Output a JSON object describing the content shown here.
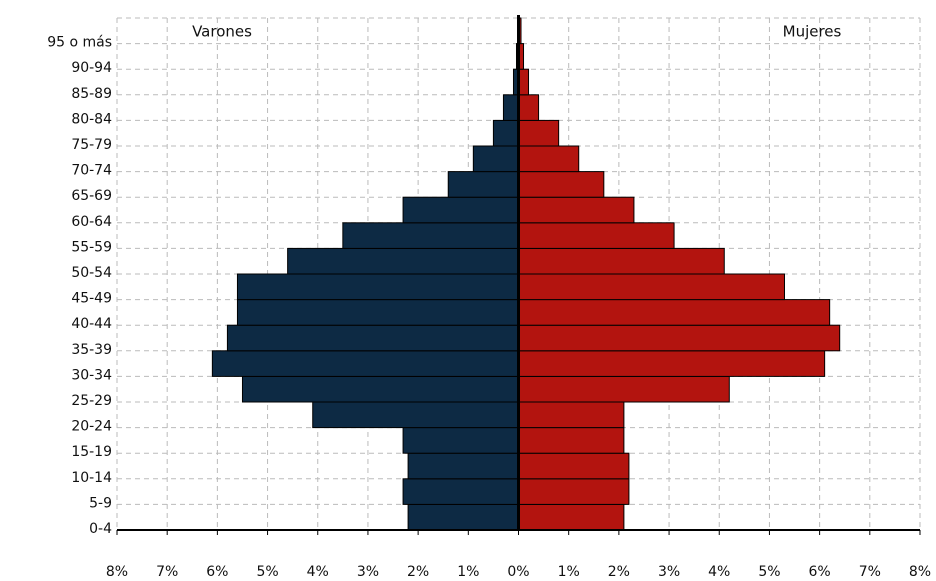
{
  "chart_data": {
    "type": "pyramid",
    "categories": [
      "0-4",
      "5-9",
      "10-14",
      "15-19",
      "20-24",
      "25-29",
      "30-34",
      "35-39",
      "40-44",
      "45-49",
      "50-54",
      "55-59",
      "60-64",
      "65-69",
      "70-74",
      "75-79",
      "80-84",
      "85-89",
      "90-94",
      "95 o más"
    ],
    "series": [
      {
        "name": "Varones",
        "color": "#0d2a44",
        "side": "left",
        "values": [
          2.2,
          2.3,
          2.2,
          2.3,
          4.1,
          5.5,
          6.1,
          5.8,
          5.6,
          5.6,
          4.6,
          3.5,
          2.3,
          1.4,
          0.9,
          0.5,
          0.3,
          0.1,
          0.04,
          0.02
        ]
      },
      {
        "name": "Mujeres",
        "color": "#b3140f",
        "side": "right",
        "values": [
          2.1,
          2.2,
          2.2,
          2.1,
          2.1,
          4.2,
          6.1,
          6.4,
          6.2,
          5.3,
          4.1,
          3.1,
          2.3,
          1.7,
          1.2,
          0.8,
          0.4,
          0.2,
          0.1,
          0.05
        ]
      }
    ],
    "xlim": [
      -8,
      8
    ],
    "xticks": [
      {
        "value": -8,
        "label": "8%"
      },
      {
        "value": -7,
        "label": "7%"
      },
      {
        "value": -6,
        "label": "6%"
      },
      {
        "value": -5,
        "label": "5%"
      },
      {
        "value": -4,
        "label": "4%"
      },
      {
        "value": -3,
        "label": "3%"
      },
      {
        "value": -2,
        "label": "2%"
      },
      {
        "value": -1,
        "label": "1%"
      },
      {
        "value": 0,
        "label": "0%"
      },
      {
        "value": 1,
        "label": "1%"
      },
      {
        "value": 2,
        "label": "2%"
      },
      {
        "value": 3,
        "label": "3%"
      },
      {
        "value": 4,
        "label": "4%"
      },
      {
        "value": 5,
        "label": "5%"
      },
      {
        "value": 6,
        "label": "6%"
      },
      {
        "value": 7,
        "label": "7%"
      },
      {
        "value": 8,
        "label": "8%"
      }
    ],
    "grid": true
  }
}
